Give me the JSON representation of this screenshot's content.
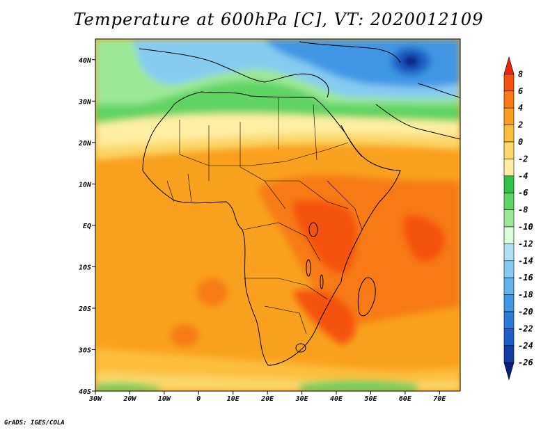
{
  "title": "Temperature at 600hPa [C], VT: 2020012109",
  "credit": "GrADS: IGES/COLA",
  "map": {
    "lon_range": [
      -30,
      76
    ],
    "lat_range": [
      -40,
      45
    ],
    "lon_ticks": [
      "30W",
      "20W",
      "10W",
      "0",
      "10E",
      "20E",
      "30E",
      "40E",
      "50E",
      "60E",
      "70E"
    ],
    "lat_ticks": [
      "40S",
      "30S",
      "20S",
      "10S",
      "EQ",
      "10N",
      "20N",
      "30N",
      "40N"
    ]
  },
  "colorbar": {
    "levels": [
      "8",
      "6",
      "4",
      "2",
      "0",
      "-2",
      "-4",
      "-6",
      "-8",
      "-10",
      "-12",
      "-14",
      "-16",
      "-18",
      "-20",
      "-22",
      "-24",
      "-26"
    ],
    "colors": [
      "#e8260c",
      "#f4520e",
      "#f77a13",
      "#f9a01e",
      "#fbbe3c",
      "#fcd769",
      "#fdeea3",
      "#33c248",
      "#5fd364",
      "#9ce896",
      "#dcfadc",
      "#aee0f6",
      "#86ccf1",
      "#62b2ec",
      "#4196e4",
      "#2d7bd8",
      "#1f5ec8",
      "#163da7",
      "#0c1e7c"
    ]
  }
}
